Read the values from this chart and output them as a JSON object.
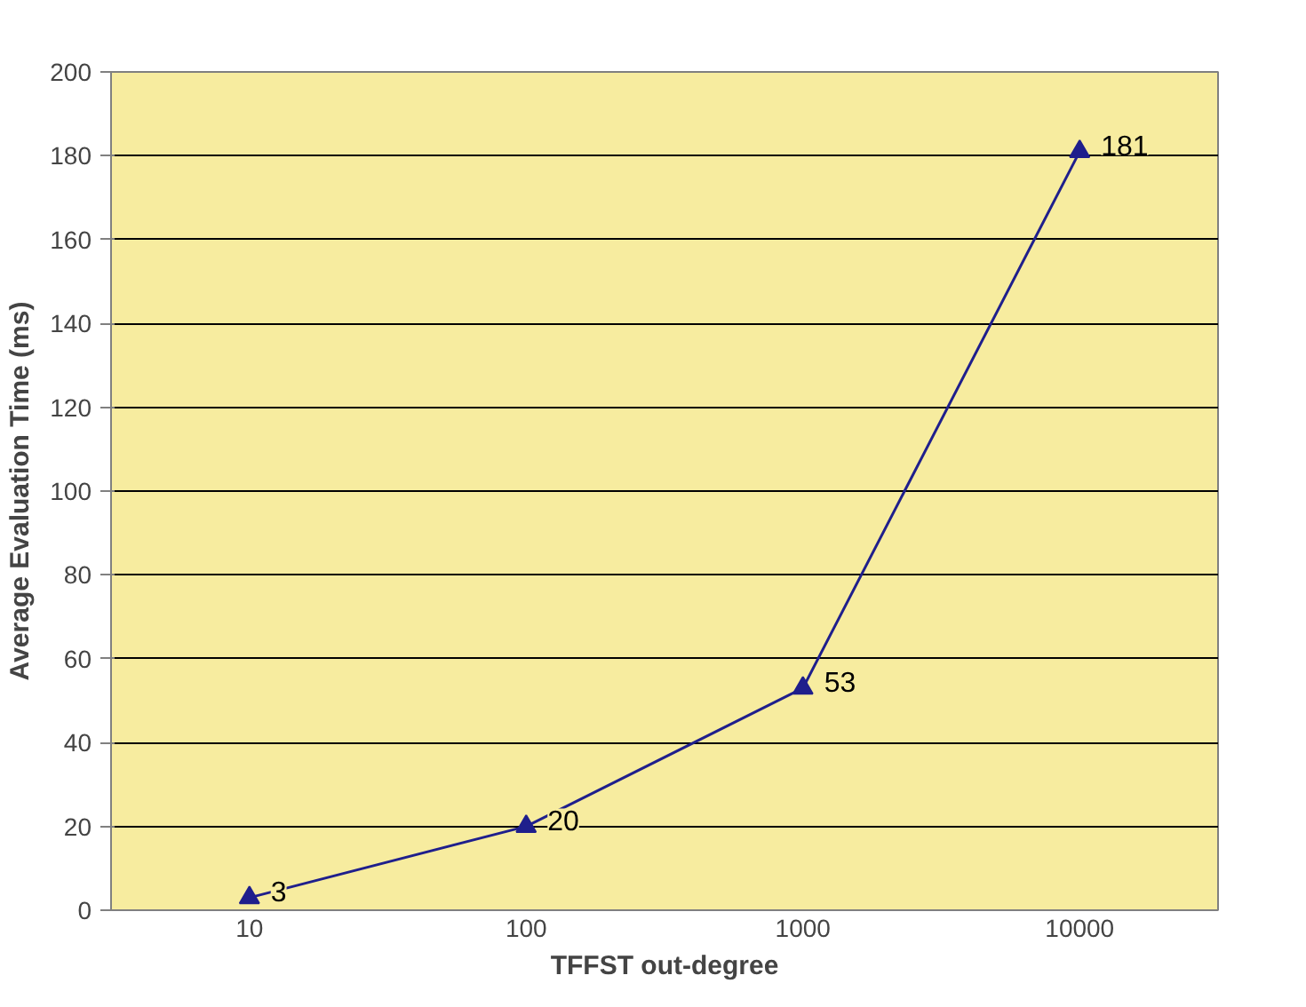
{
  "chart_data": {
    "type": "line",
    "xlabel": "TFFST out-degree",
    "ylabel": "Average Evaluation Time (ms)",
    "categories": [
      "10",
      "100",
      "1000",
      "10000"
    ],
    "series": [
      {
        "color": "#1f1f8c",
        "values": [
          3,
          20,
          53,
          181
        ]
      }
    ],
    "ylim": [
      0,
      200
    ],
    "yticks": [
      0,
      20,
      40,
      60,
      80,
      100,
      120,
      140,
      160,
      180,
      200
    ],
    "grid": "y",
    "marker": "triangle",
    "line_style": "solid",
    "data_labels": true
  }
}
